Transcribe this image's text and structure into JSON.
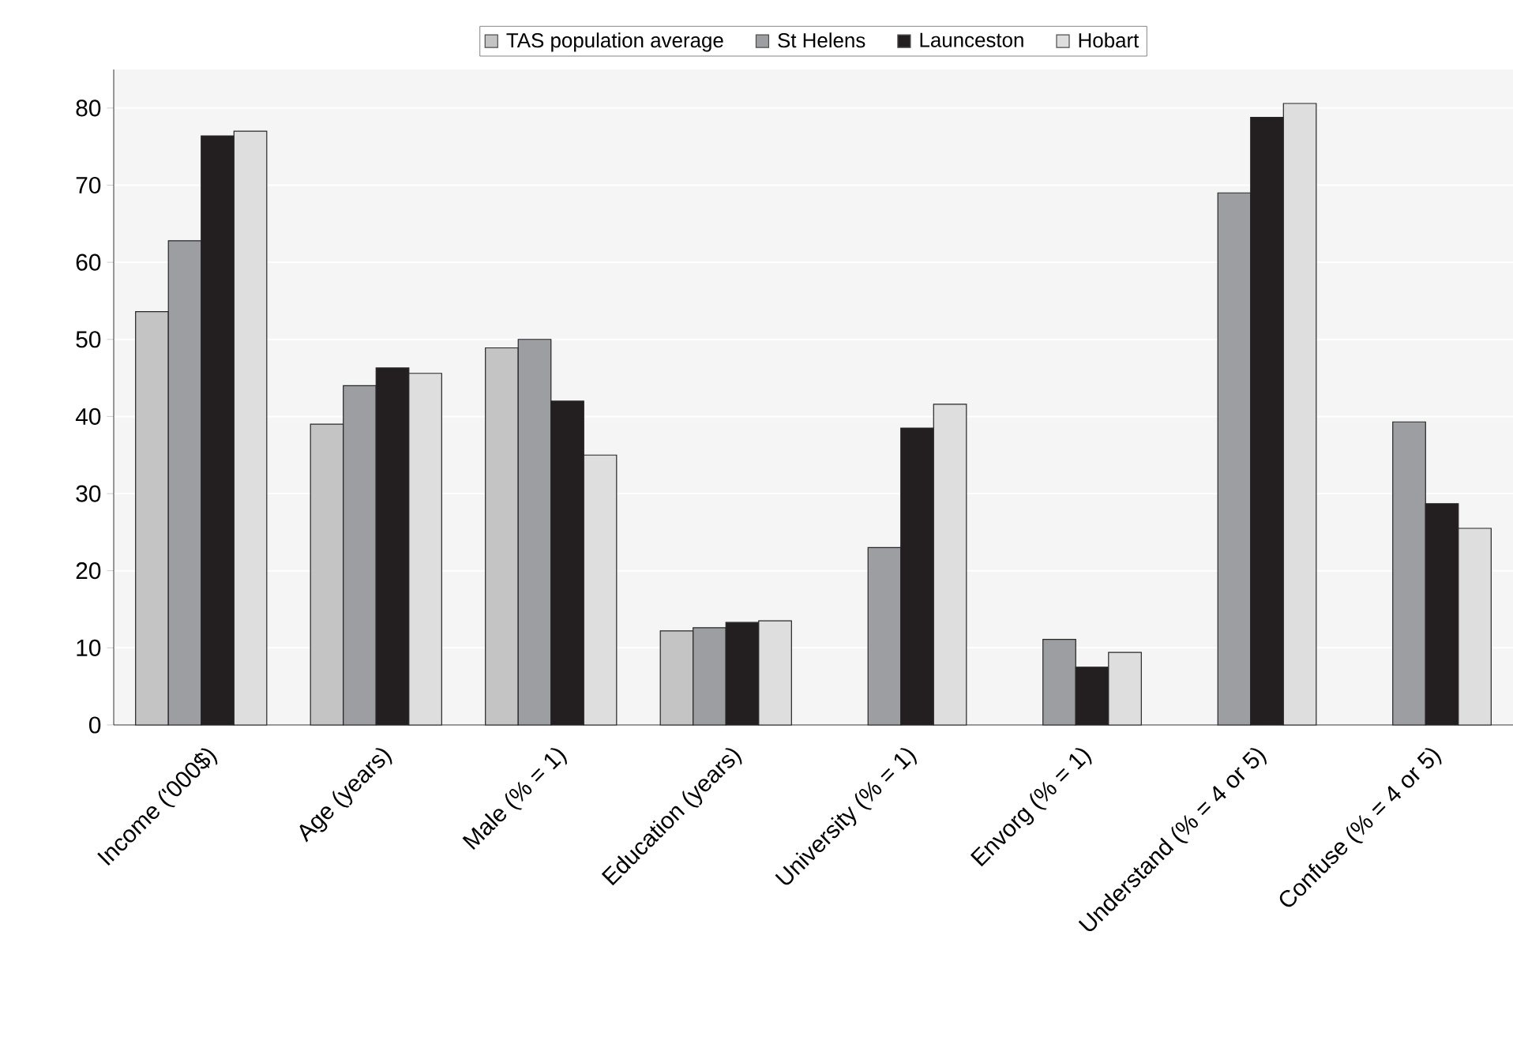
{
  "chart_data": {
    "type": "bar",
    "categories": [
      "Income ('000$)",
      "Age (years)",
      "Male (% = 1)",
      "Education (years)",
      "University (% = 1)",
      "Envorg (% = 1)",
      "Understand (% = 4 or 5)",
      "Confuse (% = 4 or 5)"
    ],
    "series": [
      {
        "name": "TAS population average",
        "color": "#c4c4c4",
        "values": [
          53.6,
          39,
          48.9,
          12.2,
          null,
          null,
          null,
          null
        ]
      },
      {
        "name": "St Helens",
        "color": "#9d9ea2",
        "values": [
          62.8,
          44,
          50,
          12.6,
          23,
          11.1,
          69,
          39.3
        ]
      },
      {
        "name": "Launceston",
        "color": "#231f20",
        "values": [
          76.4,
          46.3,
          42,
          13.3,
          38.5,
          7.5,
          78.8,
          28.7
        ]
      },
      {
        "name": "Hobart",
        "color": "#dedede",
        "values": [
          77,
          45.6,
          35,
          13.5,
          41.6,
          9.4,
          80.6,
          25.5
        ]
      }
    ],
    "ylim": [
      0,
      85
    ],
    "yticks": [
      0,
      10,
      20,
      30,
      40,
      50,
      60,
      70,
      80
    ],
    "grid": "y",
    "legend": "top"
  }
}
